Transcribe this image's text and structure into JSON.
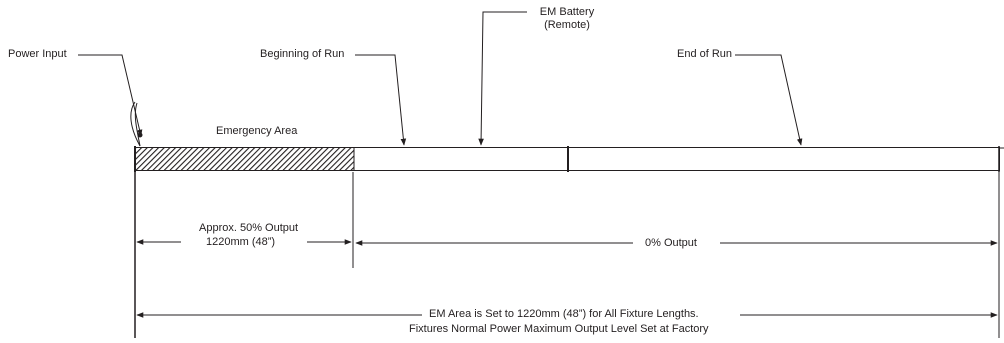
{
  "labels": {
    "power_input": "Power Input",
    "beginning_of_run": "Beginning of Run",
    "em_battery": "EM Battery",
    "em_battery_sub": "(Remote)",
    "end_of_run": "End of Run",
    "emergency_area": "Emergency Area",
    "approx_output": "Approx. 50% Output",
    "approx_length": "1220mm (48”)",
    "zero_output": "0% Output",
    "note_line1": "EM Area is Set to 1220mm (48”) for All Fixture Lengths.",
    "note_line2": "Fixtures Normal Power Maximum Output Level Set at Factory"
  },
  "colors": {
    "line": "#231f20",
    "hatch": "#231f20",
    "background": "#ffffff"
  }
}
